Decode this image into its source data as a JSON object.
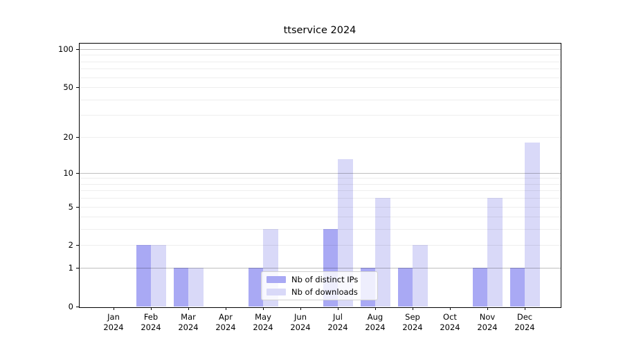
{
  "title": "ttservice 2024",
  "legend": {
    "items": [
      {
        "label": "Nb of distinct IPs",
        "color": "#a9a9f4"
      },
      {
        "label": "Nb of downloads",
        "color": "#d9d9f8"
      }
    ]
  },
  "chart_data": {
    "type": "bar",
    "title": "ttservice 2024",
    "categories": [
      {
        "month": "Jan",
        "year": "2024"
      },
      {
        "month": "Feb",
        "year": "2024"
      },
      {
        "month": "Mar",
        "year": "2024"
      },
      {
        "month": "Apr",
        "year": "2024"
      },
      {
        "month": "May",
        "year": "2024"
      },
      {
        "month": "Jun",
        "year": "2024"
      },
      {
        "month": "Jul",
        "year": "2024"
      },
      {
        "month": "Aug",
        "year": "2024"
      },
      {
        "month": "Sep",
        "year": "2024"
      },
      {
        "month": "Oct",
        "year": "2024"
      },
      {
        "month": "Nov",
        "year": "2024"
      },
      {
        "month": "Dec",
        "year": "2024"
      }
    ],
    "series": [
      {
        "name": "Nb of distinct IPs",
        "color": "#a9a9f4",
        "values": [
          0,
          2,
          1,
          0,
          1,
          0,
          3,
          1,
          1,
          0,
          1,
          1
        ]
      },
      {
        "name": "Nb of downloads",
        "color": "#d9d9f8",
        "values": [
          0,
          2,
          1,
          0,
          3,
          0,
          13,
          6,
          2,
          0,
          6,
          18
        ]
      }
    ],
    "xlabel": "",
    "ylabel": "",
    "y_axis": {
      "scale": "log1p",
      "ylim": [
        0,
        113
      ],
      "tick_labels": [
        0,
        1,
        2,
        5,
        10,
        20,
        50,
        100
      ],
      "major_gridlines": [
        1,
        10,
        100
      ],
      "minor_gridlines": [
        2,
        3,
        4,
        5,
        6,
        7,
        8,
        9,
        20,
        30,
        40,
        50,
        60,
        70,
        80,
        90
      ]
    },
    "grid": {
      "on": true,
      "major_color": "rgba(0,0,0,0.25)",
      "minor_color": "rgba(0,0,0,0.065)"
    },
    "legend_position": "lower center"
  }
}
